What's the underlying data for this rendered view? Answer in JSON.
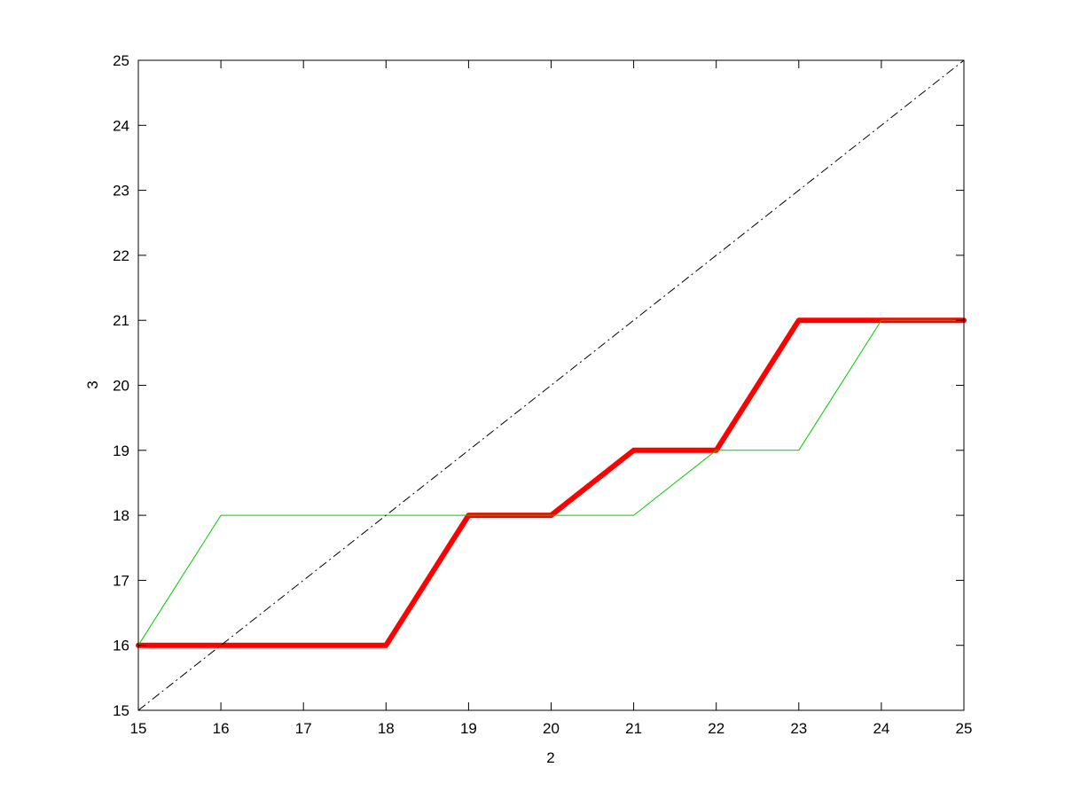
{
  "chart_data": {
    "type": "line",
    "title": "",
    "xlabel": "2",
    "ylabel": "3",
    "xlim": [
      15,
      25
    ],
    "ylim": [
      15,
      25
    ],
    "xticks": [
      "15",
      "16",
      "17",
      "18",
      "19",
      "20",
      "21",
      "22",
      "23",
      "24",
      "25"
    ],
    "yticks": [
      "15",
      "16",
      "17",
      "18",
      "19",
      "20",
      "21",
      "22",
      "23",
      "24",
      "25"
    ],
    "grid": false,
    "legend": "none",
    "series": [
      {
        "color": "#ff0000",
        "style": "solid-thick",
        "x": [
          15,
          16,
          17,
          18,
          19,
          20,
          21,
          22,
          23,
          24,
          25
        ],
        "y": [
          16,
          16,
          16,
          16,
          18,
          18,
          19,
          19,
          21,
          21,
          21
        ]
      },
      {
        "color": "#8a5a00",
        "style": "solid-thin",
        "x": [
          19,
          20
        ],
        "y": [
          18,
          18
        ]
      },
      {
        "color": "#8a5a00",
        "style": "solid-thin",
        "x": [
          24,
          25
        ],
        "y": [
          21,
          21
        ]
      },
      {
        "color": "#00cc00",
        "style": "solid-thin",
        "x": [
          15,
          16,
          17,
          18,
          19,
          20,
          21,
          22,
          23,
          24,
          25
        ],
        "y": [
          16,
          18,
          18,
          18,
          18,
          18,
          18,
          19,
          19,
          21,
          21
        ]
      },
      {
        "color": "#000000",
        "style": "dash-dot",
        "x": [
          15,
          25
        ],
        "y": [
          15,
          25
        ]
      }
    ]
  }
}
